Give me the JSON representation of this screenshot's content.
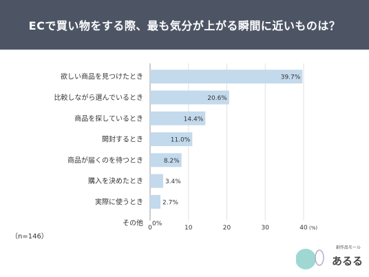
{
  "chart_data": {
    "type": "bar",
    "orientation": "horizontal",
    "title": "ECで買い物をする際、最も気分が上がる瞬間に近いものは？",
    "categories": [
      "欲しい商品を見つけたとき",
      "比較しながら選んでいるとき",
      "商品を探しているとき",
      "開封するとき",
      "商品が届くのを待つとき",
      "購入を決めたとき",
      "実際に使うとき",
      "その他"
    ],
    "values": [
      39.7,
      20.6,
      14.4,
      11.0,
      8.2,
      3.4,
      2.7,
      0
    ],
    "value_labels": [
      "39.7%",
      "20.6%",
      "14.4%",
      "11.0%",
      "8.2%",
      "3.4%",
      "2.7%",
      "0%"
    ],
    "xlim": [
      0,
      40
    ],
    "xticks": [
      "0",
      "10",
      "20",
      "30",
      "40"
    ],
    "x_unit": "(%)",
    "grid": true,
    "bar_color": "#c3d9ec",
    "note": "（n=146）"
  },
  "header_color": "#4d5565",
  "logo": {
    "sub": "創作品モール",
    "main": "あるる"
  }
}
